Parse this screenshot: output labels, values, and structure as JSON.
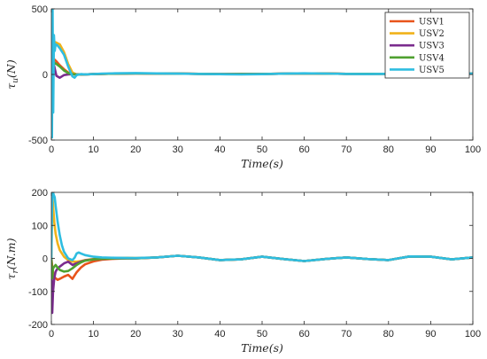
{
  "chart_data": [
    {
      "type": "line",
      "title": "",
      "xlabel": "Time(s)",
      "ylabel": "τu(N)",
      "xlim": [
        0,
        100
      ],
      "ylim": [
        -500,
        500
      ],
      "xticks": [
        "0",
        "10",
        "20",
        "30",
        "40",
        "50",
        "60",
        "70",
        "80",
        "90",
        "100"
      ],
      "yticks": [
        "500",
        "0",
        "-500"
      ],
      "legend_position": "top-right",
      "series": [
        {
          "name": "USV1",
          "color": "#e8541b",
          "x": [
            0,
            0.3,
            0.7,
            1.2,
            2,
            3,
            4,
            5,
            6,
            8,
            10,
            15,
            20,
            30,
            40,
            50,
            60,
            70,
            80,
            90,
            100
          ],
          "y": [
            0,
            80,
            115,
            100,
            70,
            40,
            15,
            3,
            0,
            1,
            3,
            6,
            8,
            6,
            3,
            4,
            8,
            5,
            5,
            6,
            7
          ]
        },
        {
          "name": "USV2",
          "color": "#f0b21a",
          "x": [
            0,
            0.3,
            0.6,
            1,
            2,
            3,
            4,
            5,
            6,
            8,
            10,
            15,
            20,
            30,
            40,
            50,
            60,
            70,
            80,
            90,
            100
          ],
          "y": [
            0,
            200,
            250,
            245,
            230,
            170,
            80,
            15,
            0,
            1,
            3,
            6,
            8,
            6,
            3,
            4,
            8,
            5,
            5,
            6,
            7
          ]
        },
        {
          "name": "USV3",
          "color": "#7b2c8e",
          "x": [
            0,
            0.3,
            0.7,
            1.2,
            2,
            3,
            4,
            5,
            6,
            8,
            10,
            15,
            20,
            30,
            40,
            50,
            60,
            70,
            80,
            90,
            100
          ],
          "y": [
            0,
            110,
            60,
            -10,
            -25,
            -5,
            0,
            2,
            0,
            1,
            3,
            6,
            8,
            6,
            3,
            4,
            8,
            5,
            5,
            6,
            7
          ]
        },
        {
          "name": "USV4",
          "color": "#4fa130",
          "x": [
            0,
            0.3,
            0.7,
            1.2,
            2,
            3,
            4,
            5,
            6,
            8,
            10,
            15,
            20,
            30,
            40,
            50,
            60,
            70,
            80,
            90,
            100
          ],
          "y": [
            0,
            60,
            90,
            80,
            60,
            30,
            10,
            2,
            0,
            1,
            3,
            6,
            8,
            6,
            3,
            4,
            8,
            5,
            5,
            6,
            7
          ]
        },
        {
          "name": "USV5",
          "color": "#2fbde0",
          "x": [
            0,
            0.15,
            0.3,
            0.45,
            0.6,
            0.8,
            1,
            1.5,
            2,
            3,
            4,
            5,
            5.5,
            6,
            7,
            8,
            10,
            12,
            15,
            20,
            25,
            30,
            35,
            40,
            45,
            50,
            55,
            60,
            65,
            70,
            75,
            80,
            85,
            90,
            95,
            100
          ],
          "y": [
            0,
            -480,
            500,
            -290,
            300,
            180,
            230,
            220,
            200,
            150,
            60,
            -15,
            -25,
            -5,
            3,
            1,
            3,
            6,
            9,
            11,
            8,
            6,
            4,
            2,
            0,
            2,
            6,
            9,
            7,
            4,
            3,
            5,
            7,
            8,
            7,
            6
          ]
        }
      ]
    },
    {
      "type": "line",
      "title": "",
      "xlabel": "Time(s)",
      "ylabel": "τr(N.m)",
      "xlim": [
        0,
        100
      ],
      "ylim": [
        -200,
        200
      ],
      "xticks": [
        "0",
        "10",
        "20",
        "30",
        "40",
        "50",
        "60",
        "70",
        "80",
        "90",
        "100"
      ],
      "yticks": [
        "200",
        "100",
        "0",
        "-100",
        "-200"
      ],
      "series": [
        {
          "name": "USV1",
          "color": "#e8541b",
          "x": [
            0,
            0.3,
            0.6,
            1,
            1.5,
            2,
            3,
            4,
            5,
            6,
            7,
            8,
            10,
            12,
            15,
            18,
            20,
            25,
            30,
            35,
            40,
            45,
            50,
            55,
            60,
            65,
            70,
            75,
            80,
            85,
            90,
            95,
            100
          ],
          "y": [
            0,
            -35,
            -55,
            -60,
            -65,
            -62,
            -55,
            -50,
            -62,
            -42,
            -28,
            -18,
            -9,
            -4,
            -1,
            0,
            0,
            3,
            8,
            3,
            -5,
            -3,
            5,
            -2,
            -8,
            -2,
            3,
            -2,
            -5,
            6,
            5,
            -3,
            3
          ]
        },
        {
          "name": "USV2",
          "color": "#f0b21a",
          "x": [
            0,
            0.2,
            0.4,
            0.7,
            1,
            1.5,
            2,
            3,
            4,
            5,
            6,
            7,
            8,
            10,
            12,
            15,
            18,
            20,
            25,
            30,
            35,
            40,
            45,
            50,
            55,
            60,
            65,
            70,
            75,
            80,
            85,
            90,
            95,
            100
          ],
          "y": [
            0,
            200,
            160,
            110,
            75,
            45,
            25,
            5,
            -5,
            -10,
            -10,
            -8,
            -5,
            -2,
            0,
            1,
            2,
            1,
            3,
            8,
            3,
            -5,
            -3,
            5,
            -2,
            -8,
            -2,
            3,
            -2,
            -5,
            6,
            5,
            -3,
            3
          ]
        },
        {
          "name": "USV3",
          "color": "#7b2c8e",
          "x": [
            0,
            0.2,
            0.4,
            0.7,
            1,
            1.5,
            2,
            3,
            4,
            5,
            6,
            7,
            8,
            10,
            12,
            15,
            18,
            20,
            25,
            30,
            35,
            40,
            45,
            50,
            55,
            60,
            65,
            70,
            75,
            80,
            85,
            90,
            95,
            100
          ],
          "y": [
            0,
            -165,
            -100,
            -60,
            -40,
            -30,
            -25,
            -15,
            -10,
            -20,
            -15,
            -10,
            -6,
            -3,
            -1,
            0,
            0,
            0,
            3,
            8,
            3,
            -5,
            -3,
            5,
            -2,
            -8,
            -2,
            3,
            -2,
            -5,
            6,
            5,
            -3,
            3
          ]
        },
        {
          "name": "USV4",
          "color": "#4fa130",
          "x": [
            0,
            0.2,
            0.4,
            0.7,
            1,
            1.5,
            2,
            3,
            4,
            5,
            6,
            7,
            8,
            10,
            12,
            15,
            18,
            20,
            25,
            30,
            35,
            40,
            45,
            50,
            55,
            60,
            65,
            70,
            75,
            80,
            85,
            90,
            95,
            100
          ],
          "y": [
            0,
            -60,
            -30,
            -25,
            -20,
            -28,
            -35,
            -40,
            -38,
            -30,
            -20,
            -12,
            -7,
            -3,
            -1,
            0,
            0,
            0,
            3,
            8,
            3,
            -5,
            -3,
            5,
            -2,
            -8,
            -2,
            3,
            -2,
            -5,
            6,
            5,
            -3,
            3
          ]
        },
        {
          "name": "USV5",
          "color": "#2fbde0",
          "x": [
            0,
            0.15,
            0.3,
            0.5,
            0.8,
            1,
            1.5,
            2,
            2.5,
            3,
            4,
            5,
            5.5,
            6,
            6.5,
            7,
            8,
            10,
            12,
            15,
            20,
            25,
            30,
            35,
            40,
            45,
            50,
            55,
            60,
            65,
            70,
            75,
            80,
            85,
            90,
            95,
            100
          ],
          "y": [
            0,
            150,
            200,
            195,
            185,
            160,
            110,
            70,
            40,
            20,
            0,
            -5,
            2,
            15,
            18,
            15,
            10,
            5,
            3,
            2,
            1,
            3,
            8,
            3,
            -5,
            -3,
            5,
            -2,
            -8,
            -2,
            3,
            -2,
            -5,
            6,
            5,
            -3,
            3
          ]
        }
      ]
    }
  ]
}
